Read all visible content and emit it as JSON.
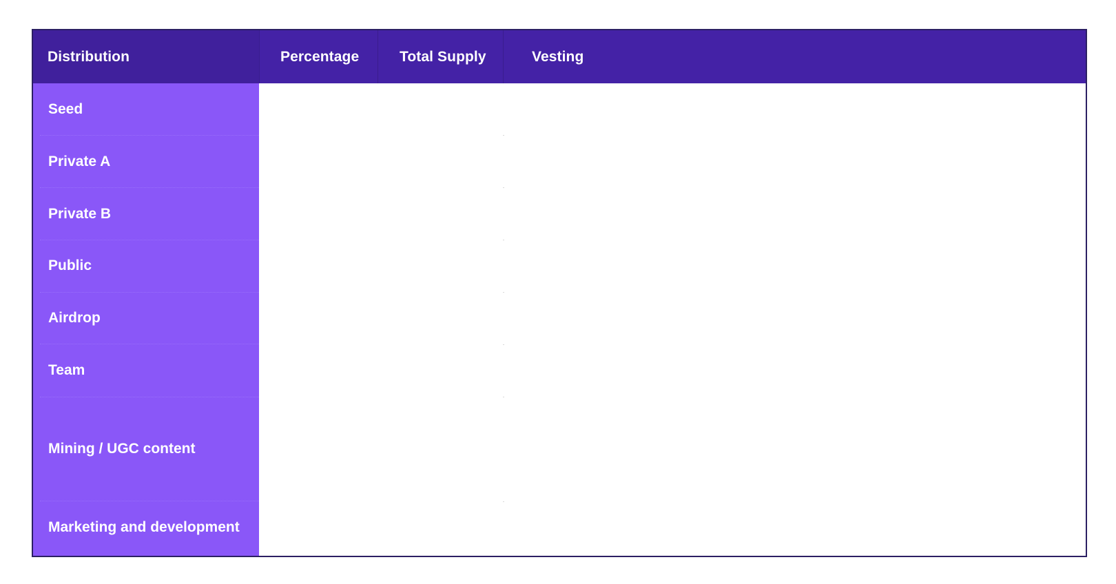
{
  "table": {
    "headers": {
      "distribution": "Distribution",
      "percentage": "Percentage",
      "total_supply": "Total Supply",
      "vesting": "Vesting"
    },
    "rows": [
      {
        "label": "Seed",
        "percentage": "",
        "total_supply": "",
        "vesting": ""
      },
      {
        "label": "Private A",
        "percentage": "",
        "total_supply": "",
        "vesting": ""
      },
      {
        "label": "Private B",
        "percentage": "",
        "total_supply": "",
        "vesting": ""
      },
      {
        "label": "Public",
        "percentage": "",
        "total_supply": "",
        "vesting": ""
      },
      {
        "label": "Airdrop",
        "percentage": "",
        "total_supply": "",
        "vesting": ""
      },
      {
        "label": "Team",
        "percentage": "",
        "total_supply": "",
        "vesting": ""
      },
      {
        "label": "Mining / UGC content",
        "percentage": "",
        "total_supply": "",
        "vesting": ""
      },
      {
        "label": "Marketing and development",
        "percentage": "",
        "total_supply": "",
        "vesting": ""
      }
    ]
  },
  "colors": {
    "header_bg": "#4422a6",
    "label_column_bg": "#8a57f8",
    "border": "#2b1f63",
    "text": "#ffffff"
  }
}
